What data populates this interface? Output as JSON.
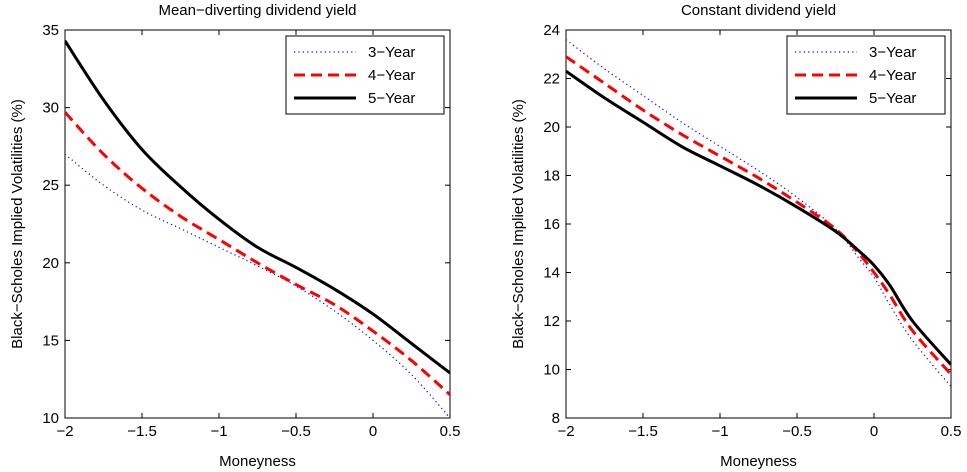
{
  "chart_data": [
    {
      "type": "line",
      "title": "Mean−diverting dividend yield",
      "xlabel": "Moneyness",
      "ylabel": "Black−Scholes Implied Volatilities (%)",
      "xlim": [
        -2,
        0.5
      ],
      "ylim": [
        10,
        35
      ],
      "xticks": [
        -2,
        -1.5,
        -1,
        -0.5,
        0,
        0.5
      ],
      "xtick_labels": [
        "−2",
        "−1.5",
        "−1",
        "−0.5",
        "0",
        "0.5"
      ],
      "yticks": [
        10,
        15,
        20,
        25,
        30,
        35
      ],
      "ytick_labels": [
        "10",
        "15",
        "20",
        "25",
        "30",
        "35"
      ],
      "grid": false,
      "legend": "top-right",
      "x": [
        -2,
        -1.75,
        -1.5,
        -1.25,
        -1,
        -0.75,
        -0.5,
        -0.25,
        0,
        0.25,
        0.5
      ],
      "series": [
        {
          "name": "3−Year",
          "style": "dotted",
          "color": "#0000ff",
          "values": [
            27.0,
            25.0,
            23.4,
            22.2,
            21.0,
            19.8,
            18.5,
            16.9,
            15.0,
            12.8,
            10.0
          ]
        },
        {
          "name": "4−Year",
          "style": "dashed",
          "color": "#ff0000",
          "values": [
            29.7,
            27.0,
            24.8,
            23.0,
            21.5,
            20.0,
            18.6,
            17.3,
            15.6,
            13.7,
            11.5
          ]
        },
        {
          "name": "5−Year",
          "style": "solid",
          "color": "#000000",
          "values": [
            34.3,
            30.5,
            27.3,
            24.9,
            22.8,
            21.0,
            19.7,
            18.3,
            16.7,
            14.8,
            12.9
          ]
        }
      ]
    },
    {
      "type": "line",
      "title": "Constant dividend yield",
      "xlabel": "Moneyness",
      "ylabel": "Black−Scholes Implied Volatilities (%)",
      "xlim": [
        -2,
        0.5
      ],
      "ylim": [
        8,
        24
      ],
      "xticks": [
        -2,
        -1.5,
        -1,
        -0.5,
        0,
        0.5
      ],
      "xtick_labels": [
        "−2",
        "−1.5",
        "−1",
        "−0.5",
        "0",
        "0.5"
      ],
      "yticks": [
        8,
        10,
        12,
        14,
        16,
        18,
        20,
        22,
        24
      ],
      "ytick_labels": [
        "8",
        "10",
        "12",
        "14",
        "16",
        "18",
        "20",
        "22",
        "24"
      ],
      "grid": false,
      "legend": "top-right",
      "x": [
        -2,
        -1.75,
        -1.5,
        -1.25,
        -1,
        -0.75,
        -0.5,
        -0.25,
        -0.1,
        0,
        0.1,
        0.25,
        0.5
      ],
      "series": [
        {
          "name": "3−Year",
          "style": "dotted",
          "color": "#0000ff",
          "values": [
            23.6,
            22.4,
            21.3,
            20.2,
            19.2,
            18.2,
            17.1,
            15.8,
            14.6,
            13.8,
            12.7,
            11.2,
            9.3
          ]
        },
        {
          "name": "4−Year",
          "style": "dashed",
          "color": "#ff0000",
          "values": [
            22.9,
            21.8,
            20.7,
            19.7,
            18.8,
            17.9,
            16.9,
            15.8,
            14.8,
            14.0,
            13.1,
            11.6,
            9.8
          ]
        },
        {
          "name": "5−Year",
          "style": "solid",
          "color": "#000000",
          "values": [
            22.3,
            21.2,
            20.2,
            19.2,
            18.4,
            17.6,
            16.7,
            15.7,
            14.9,
            14.3,
            13.5,
            12.0,
            10.2
          ]
        }
      ]
    }
  ]
}
